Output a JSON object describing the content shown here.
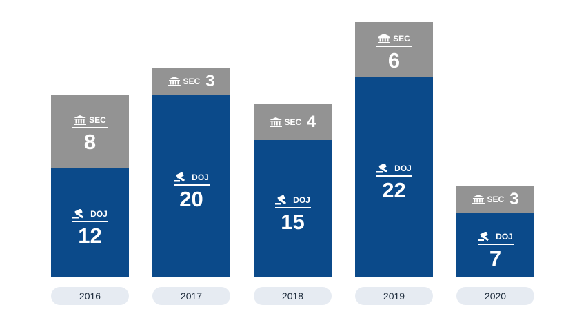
{
  "chart_data": {
    "type": "bar",
    "stacked": true,
    "categories": [
      "2016",
      "2017",
      "2018",
      "2019",
      "2020"
    ],
    "series": [
      {
        "name": "DOJ",
        "values": [
          12,
          20,
          15,
          22,
          7
        ],
        "color": "#0b4a8a",
        "icon": "gavel-icon"
      },
      {
        "name": "SEC",
        "values": [
          8,
          3,
          4,
          6,
          3
        ],
        "color": "#939393",
        "icon": "bank-icon"
      }
    ],
    "ylim": [
      0,
      28
    ],
    "grid": false,
    "legend": "none",
    "label_style": {
      "DOJ": [
        "stacked",
        "stacked",
        "stacked",
        "stacked",
        "stacked"
      ],
      "SEC": [
        "stacked",
        "inline",
        "inline",
        "stacked",
        "inline"
      ]
    }
  }
}
